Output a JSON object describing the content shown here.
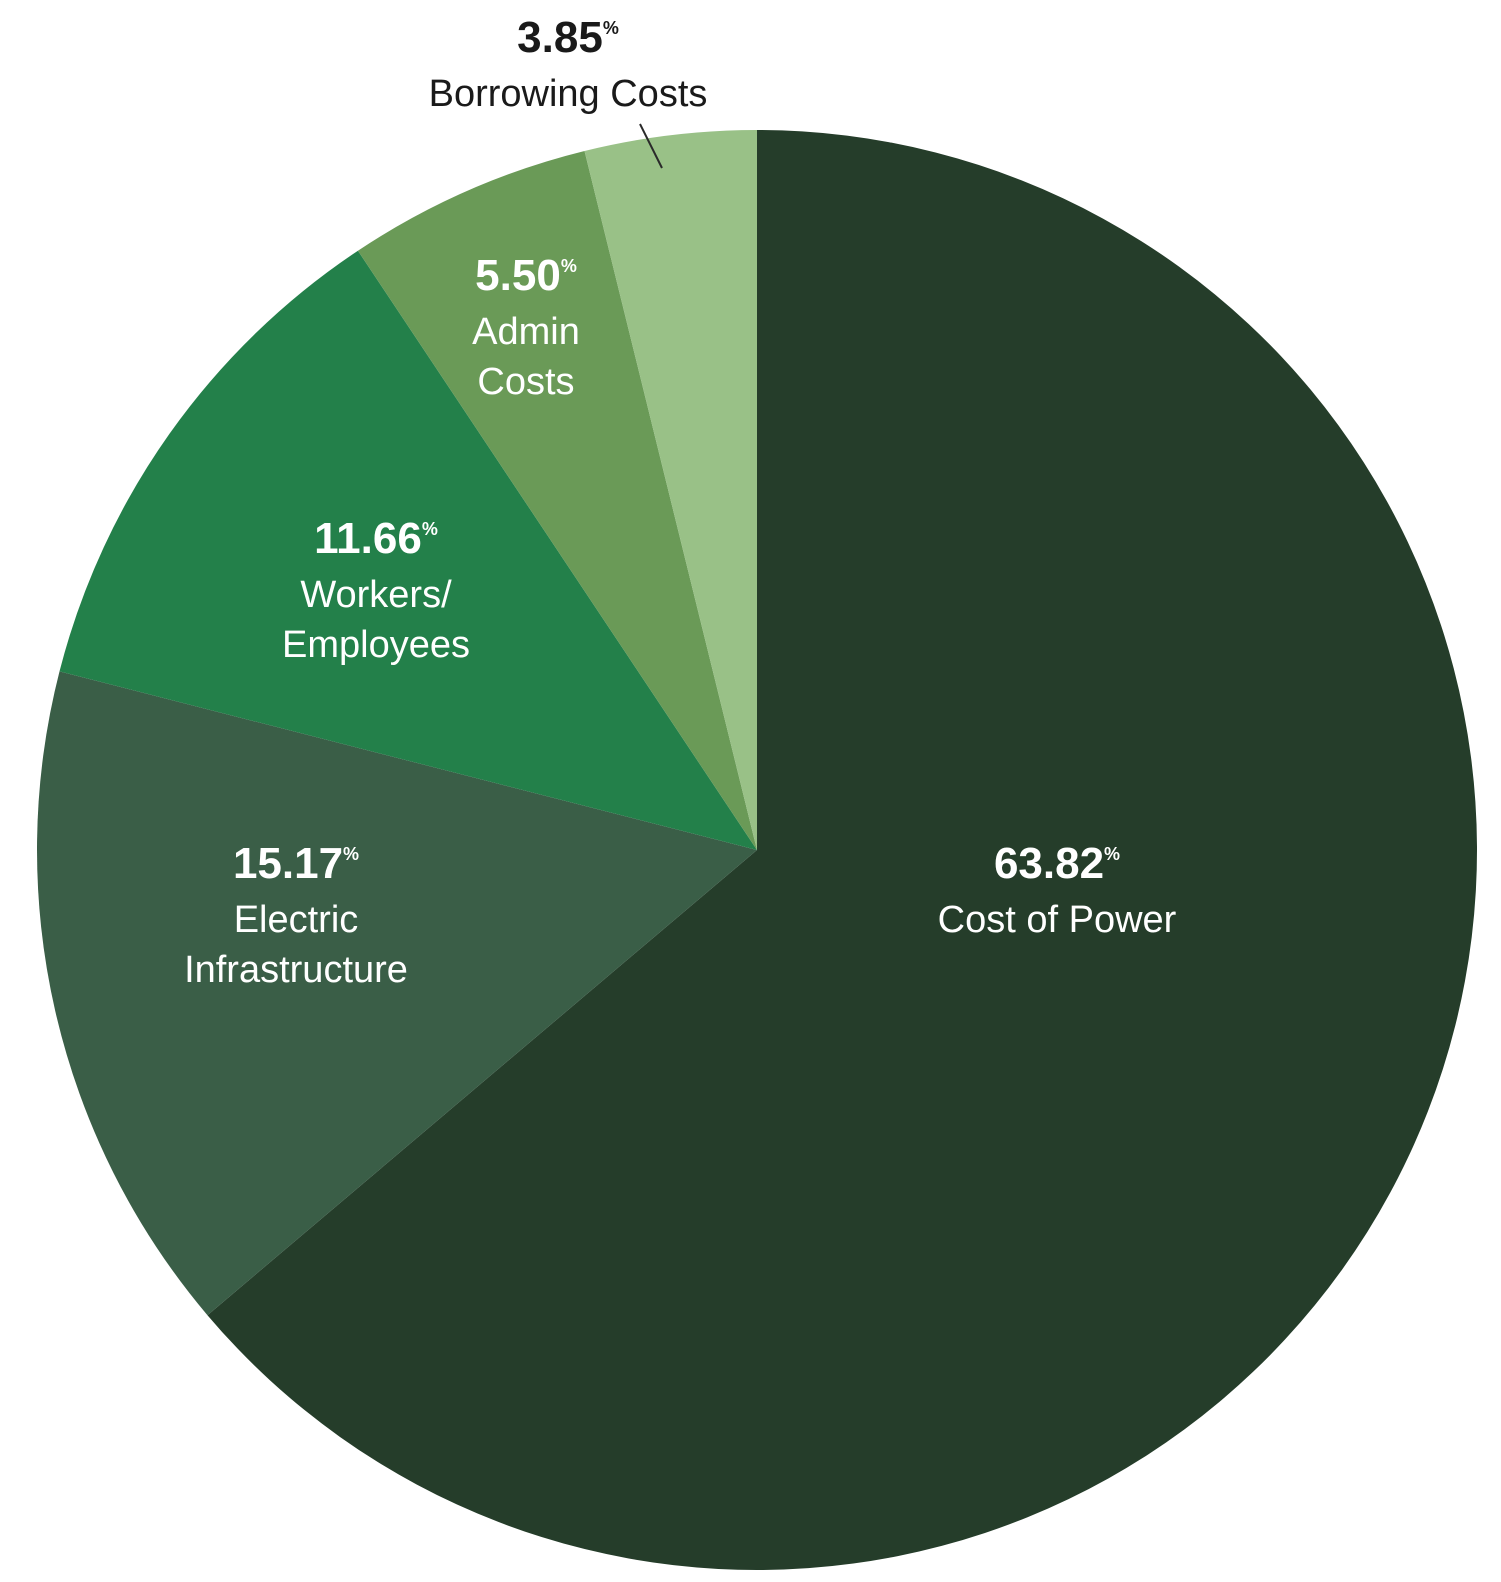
{
  "chart_data": {
    "type": "pie",
    "start_angle_deg": 0,
    "direction": "clockwise",
    "unit": "%",
    "slices": [
      {
        "label_lines": [
          "Cost of Power"
        ],
        "value": 63.82,
        "value_text": "63.82",
        "color": "#253d2a"
      },
      {
        "label_lines": [
          "Electric",
          "Infrastructure"
        ],
        "value": 15.17,
        "value_text": "15.17",
        "color": "#3a5e47"
      },
      {
        "label_lines": [
          "Workers/",
          "Employees"
        ],
        "value": 11.66,
        "value_text": "11.66",
        "color": "#23804a"
      },
      {
        "label_lines": [
          "Admin",
          "Costs"
        ],
        "value": 5.5,
        "value_text": "5.50",
        "color": "#6a9a57"
      },
      {
        "label_lines": [
          "Borrowing Costs"
        ],
        "value": 3.85,
        "value_text": "3.85",
        "color": "#99c187"
      }
    ]
  }
}
